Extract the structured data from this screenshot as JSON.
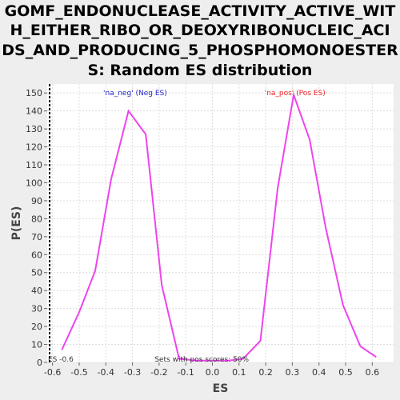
{
  "chart_data": {
    "type": "line",
    "title_lines": [
      "GOMF_ENDONUCLEASE_ACTIVITY_ACTIVE_WIT",
      "H_EITHER_RIBO_OR_DEOXYRIBONUCLEIC_ACI",
      "DS_AND_PRODUCING_5_PHOSPHOMONOESTER",
      "S: Random ES distribution"
    ],
    "xlabel": "ES",
    "ylabel": "P(ES)",
    "xlim": [
      -0.62,
      0.68
    ],
    "ylim": [
      0,
      155
    ],
    "x_ticks": [
      -0.6,
      -0.5,
      -0.4,
      -0.3,
      -0.2,
      -0.1,
      0.0,
      0.1,
      0.2,
      0.3,
      0.4,
      0.5,
      0.6
    ],
    "x_tick_labels": [
      "-0.6",
      "-0.5",
      "-0.4",
      "-0.3",
      "-0.2",
      "-0.1",
      "0.0",
      "0.1",
      "0.2",
      "0.3",
      "0.4",
      "0.5",
      "0.6"
    ],
    "y_ticks": [
      0,
      10,
      20,
      30,
      40,
      50,
      60,
      70,
      80,
      90,
      100,
      110,
      120,
      130,
      140,
      150
    ],
    "y_tick_labels": [
      "0",
      "10",
      "20",
      "30",
      "40",
      "50",
      "60",
      "70",
      "80",
      "90",
      "100",
      "110",
      "120",
      "130",
      "140",
      "150"
    ],
    "grid": true,
    "line_color": "#ee44ee",
    "series": [
      {
        "x": [
          -0.565,
          -0.5,
          -0.44,
          -0.38,
          -0.315,
          -0.25,
          -0.19,
          -0.125,
          -0.06,
          0.0,
          0.06,
          0.115,
          0.18,
          0.245,
          0.305,
          0.365,
          0.425,
          0.49,
          0.555,
          0.615
        ],
        "values": [
          7,
          28,
          51,
          102,
          140,
          127,
          43,
          2,
          1,
          1,
          1,
          2,
          12,
          97,
          149,
          124,
          75,
          32,
          9,
          3
        ]
      }
    ],
    "annotations": {
      "neg_label": "'na_neg' (Neg ES)",
      "neg_color": "#2222cc",
      "pos_label": "'na_pos' (Pos ES)",
      "pos_color": "#ee2222",
      "pos_scores": "Sets with pos scores: 50%",
      "es_marker": "ES -0.6"
    }
  }
}
